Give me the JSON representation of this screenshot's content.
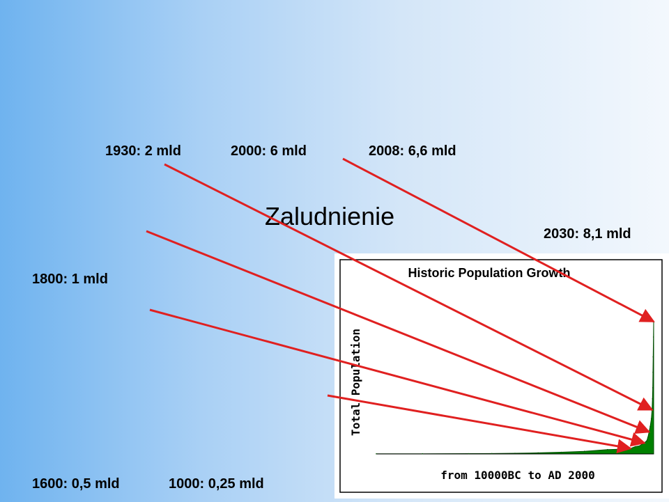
{
  "page": {
    "title": "Zaludnienie"
  },
  "annotations": [
    {
      "id": "1930",
      "text": "1930: 2 mld"
    },
    {
      "id": "2000",
      "text": "2000: 6 mld"
    },
    {
      "id": "2008",
      "text": "2008: 6,6 mld"
    },
    {
      "id": "2030",
      "text": "2030: 8,1 mld"
    },
    {
      "id": "1800",
      "text": "1800: 1 mld"
    },
    {
      "id": "1600",
      "text": "1600: 0,5 mld"
    },
    {
      "id": "1000",
      "text": "1000: 0,25 mld"
    }
  ],
  "colors": {
    "arrow": "#e02020",
    "area_fill": "#008000",
    "area_stroke": "#004d00"
  },
  "chart_data": {
    "type": "area",
    "title": "Historic Population Growth",
    "xlabel": "from 10000BC to AD 2000",
    "ylabel": "Total Population",
    "units": "bln",
    "xlim": [
      -10000,
      2000
    ],
    "ylim": [
      0,
      6.5
    ],
    "x": [
      -10000,
      -8000,
      -6000,
      -5000,
      -4000,
      -3000,
      -2000,
      -1000,
      1,
      500,
      1000,
      1200,
      1400,
      1500,
      1600,
      1650,
      1700,
      1750,
      1800,
      1850,
      1900,
      1930,
      1950,
      1960,
      1970,
      1980,
      1990,
      2000
    ],
    "series": [
      {
        "values": [
          0.005,
          0.01,
          0.015,
          0.02,
          0.03,
          0.05,
          0.08,
          0.12,
          0.2,
          0.21,
          0.25,
          0.33,
          0.37,
          0.45,
          0.5,
          0.55,
          0.6,
          0.75,
          1.0,
          1.25,
          1.6,
          2.0,
          2.5,
          3.0,
          3.7,
          4.4,
          5.3,
          6.0
        ]
      }
    ]
  }
}
